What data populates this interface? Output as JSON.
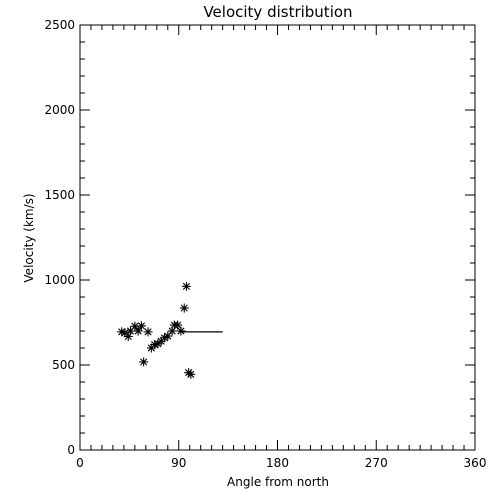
{
  "chart_data": {
    "type": "scatter",
    "title": "Velocity distribution",
    "xlabel": "Angle from north",
    "ylabel": "Velocity (km/s)",
    "xlim": [
      0,
      360
    ],
    "ylim": [
      0,
      2500
    ],
    "x_ticks": [
      0,
      90,
      180,
      270,
      360
    ],
    "y_ticks": [
      0,
      500,
      1000,
      1500,
      2000,
      2500
    ],
    "x_minor_step": 10,
    "y_minor_step": 100,
    "grid": false,
    "marker": "asterisk",
    "points": [
      {
        "x": 38,
        "y": 695
      },
      {
        "x": 41,
        "y": 690
      },
      {
        "x": 44,
        "y": 668
      },
      {
        "x": 46,
        "y": 700
      },
      {
        "x": 50,
        "y": 728
      },
      {
        "x": 53,
        "y": 700
      },
      {
        "x": 56,
        "y": 730
      },
      {
        "x": 58,
        "y": 518
      },
      {
        "x": 62,
        "y": 695
      },
      {
        "x": 65,
        "y": 600
      },
      {
        "x": 68,
        "y": 620
      },
      {
        "x": 71,
        "y": 625
      },
      {
        "x": 74,
        "y": 640
      },
      {
        "x": 77,
        "y": 660
      },
      {
        "x": 80,
        "y": 670
      },
      {
        "x": 84,
        "y": 700
      },
      {
        "x": 86,
        "y": 735
      },
      {
        "x": 89,
        "y": 735
      },
      {
        "x": 92,
        "y": 700
      },
      {
        "x": 95,
        "y": 835
      },
      {
        "x": 97,
        "y": 963
      },
      {
        "x": 99,
        "y": 455
      },
      {
        "x": 101,
        "y": 445
      }
    ],
    "reference_line": {
      "x_start": 90,
      "x_end": 130,
      "y": 695
    }
  }
}
